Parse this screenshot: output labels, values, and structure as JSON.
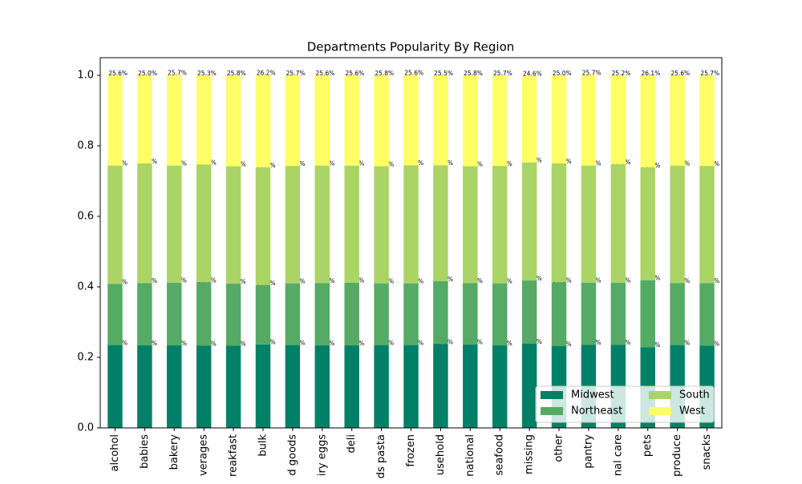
{
  "chart_data": {
    "type": "stacked_bar",
    "title": "Departments Popularity By Region",
    "categories": [
      "alcohol",
      "babies",
      "bakery",
      "verages",
      "reakfast",
      "bulk",
      "d goods",
      "iry eggs",
      "deli",
      "ds pasta",
      "frozen",
      "usehold",
      "national",
      "seafood",
      "missing",
      "other",
      "pantry",
      "nal care",
      "pets",
      "produce",
      "snacks"
    ],
    "series": [
      {
        "name": "Midwest",
        "color": "#008066",
        "values": [
          0.235,
          0.234,
          0.234,
          0.233,
          0.233,
          0.237,
          0.235,
          0.234,
          0.234,
          0.235,
          0.235,
          0.238,
          0.237,
          0.234,
          0.239,
          0.232,
          0.236,
          0.236,
          0.229,
          0.235,
          0.233
        ],
        "value_labels": [
          "23.5%",
          "23.4%",
          "23.4%",
          "23.3%",
          "23.3%",
          "23.7%",
          "23.5%",
          "23.4%",
          "23.4%",
          "23.5%",
          "23.5%",
          "23.8%",
          "23.7%",
          "23.4%",
          "23.9%",
          "23.2%",
          "23.6%",
          "23.6%",
          "22.9%",
          "23.5%",
          "23.3%"
        ]
      },
      {
        "name": "Northeast",
        "color": "#55aa66",
        "values": [
          0.173,
          0.177,
          0.178,
          0.18,
          0.176,
          0.168,
          0.175,
          0.177,
          0.178,
          0.175,
          0.175,
          0.178,
          0.174,
          0.176,
          0.179,
          0.181,
          0.176,
          0.176,
          0.19,
          0.176,
          0.178
        ],
        "value_labels": [
          "17.3%",
          "17.7%",
          "17.8%",
          "18.0%",
          "17.6%",
          "16.8%",
          "17.5%",
          "17.7%",
          "17.8%",
          "17.5%",
          "17.5%",
          "17.8%",
          "17.4%",
          "17.6%",
          "17.9%",
          "18.1%",
          "17.6%",
          "17.6%",
          "19.0%",
          "17.6%",
          "17.8%"
        ]
      },
      {
        "name": "South",
        "color": "#aad466",
        "values": [
          0.336,
          0.339,
          0.332,
          0.334,
          0.333,
          0.334,
          0.333,
          0.333,
          0.332,
          0.332,
          0.335,
          0.329,
          0.331,
          0.333,
          0.335,
          0.337,
          0.332,
          0.336,
          0.32,
          0.333,
          0.332
        ],
        "value_labels": [
          "33.6%",
          "33.9%",
          "33.2%",
          "33.4%",
          "33.3%",
          "33.4%",
          "33.3%",
          "33.3%",
          "33.2%",
          "33.2%",
          "33.5%",
          "32.9%",
          "33.1%",
          "33.3%",
          "33.5%",
          "33.7%",
          "33.2%",
          "33.6%",
          "32.0%",
          "33.3%",
          "33.2%"
        ]
      },
      {
        "name": "West",
        "color": "#ffff66",
        "values": [
          0.256,
          0.25,
          0.257,
          0.253,
          0.258,
          0.262,
          0.257,
          0.256,
          0.256,
          0.258,
          0.256,
          0.255,
          0.258,
          0.257,
          0.246,
          0.25,
          0.257,
          0.252,
          0.261,
          0.256,
          0.257
        ],
        "value_labels": [
          "25.6%",
          "25.0%",
          "25.7%",
          "25.3%",
          "25.8%",
          "26.2%",
          "25.7%",
          "25.6%",
          "25.6%",
          "25.8%",
          "25.6%",
          "25.5%",
          "25.8%",
          "25.7%",
          "24.6%",
          "25.0%",
          "25.7%",
          "25.2%",
          "26.1%",
          "25.6%",
          "25.7%"
        ]
      }
    ],
    "ylim": [
      0,
      1.05
    ],
    "yticks": [
      {
        "value": 0,
        "label": "0.0"
      },
      {
        "value": 0.2,
        "label": "0.2"
      },
      {
        "value": 0.4,
        "label": "0.4"
      },
      {
        "value": 0.6,
        "label": "0.6"
      },
      {
        "value": 0.8,
        "label": "0.8"
      },
      {
        "value": 1,
        "label": "1.0"
      }
    ],
    "legend_position": "lower right"
  }
}
